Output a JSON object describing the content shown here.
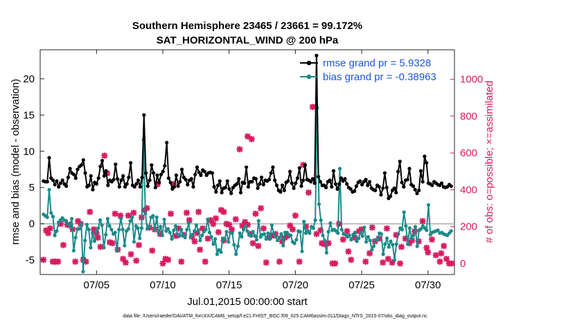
{
  "chart_data": {
    "type": "line",
    "title": "Southern Hemisphere 23465 / 23661 = 99.172%",
    "subtitle": "SAT_HORIZONTAL_WIND @ 200 hPa",
    "xlabel": "Jul.01,2015 00:00:00 start",
    "ylabel_left": "rmse and bias (model - observation)",
    "ylabel_right": "# of obs: o=possible; ×=assimilated",
    "footnote": "data file: /Users/raeder/DAI/ATM_forcXX/CAM6_setup/f.e21.FHIST_BGC.f09_025.CAM6assim.011/Diags_NTrS_2015-07/obs_diag_output.nc",
    "xlim": [
      0.75,
      32.0
    ],
    "ylim_left": [
      -7,
      24
    ],
    "ylim_right": [
      -60,
      1160
    ],
    "x_ticks": [
      5,
      10,
      15,
      20,
      25,
      30
    ],
    "x_tick_labels": [
      "07/05",
      "07/10",
      "07/15",
      "07/20",
      "07/25",
      "07/30"
    ],
    "y_ticks_left": [
      -5,
      0,
      5,
      10,
      15,
      20
    ],
    "y_ticks_right": [
      0,
      200,
      400,
      600,
      800,
      1000
    ],
    "zero_line": 0,
    "colors": {
      "rmse": "#000000",
      "bias": "#1a8a8a",
      "obs": "#d81b60",
      "legend_text": "#1a55e0",
      "zero_line": "#bbbbbb"
    },
    "series": [
      {
        "name": "rmse grand pr = 5.9328",
        "axis": "left",
        "color": "#000000",
        "marker": "dot",
        "values": [
          5.9,
          5.8,
          5.8,
          9.1,
          6.3,
          6.0,
          5.4,
          5.9,
          5.1,
          5.6,
          6.0,
          5.5,
          5.2,
          6.4,
          7.6,
          7.0,
          6.8,
          6.3,
          7.5,
          7.9,
          8.1,
          8.8,
          7.0,
          5.1,
          5.3,
          6.6,
          4.7,
          5.7,
          5.5,
          6.3,
          7.9,
          8.7,
          6.6,
          7.3,
          5.3,
          6.0,
          5.8,
          6.1,
          8.2,
          6.2,
          5.1,
          6.0,
          6.6,
          5.1,
          5.5,
          6.4,
          8.4,
          5.3,
          5.1,
          5.5,
          6.0,
          5.1,
          6.4,
          15.0,
          7.0,
          5.2,
          6.0,
          8.1,
          7.0,
          5.0,
          6.7,
          5.7,
          6.8,
          7.2,
          8.0,
          11.2,
          6.3,
          5.7,
          4.8,
          5.1,
          6.7,
          5.2,
          5.8,
          7.5,
          6.4,
          6.1,
          5.4,
          6.0,
          6.2,
          5.1,
          6.8,
          7.8,
          7.1,
          6.7,
          7.4,
          7.2,
          6.7,
          7.0,
          7.1,
          7.0,
          5.1,
          4.4,
          5.3,
          5.9,
          4.3,
          4.9,
          5.0,
          5.9,
          4.8,
          4.2,
          5.0,
          5.3,
          5.5,
          6.2,
          4.3,
          5.7,
          5.6,
          7.8,
          5.1,
          5.8,
          5.8,
          6.3,
          6.2,
          4.9,
          5.5,
          6.4,
          5.4,
          6.0,
          5.9,
          6.1,
          7.0,
          7.8,
          6.0,
          5.3,
          4.6,
          4.4,
          5.3,
          4.6,
          5.7,
          5.9,
          7.2,
          5.6,
          4.9,
          5.6,
          6.3,
          7.7,
          5.2,
          6.0,
          8.1,
          6.1,
          6.0,
          5.8,
          6.2,
          5.6,
          23.2,
          6.5,
          5.8,
          5.3,
          5.3,
          5.0,
          5.8,
          6.0,
          5.1,
          7.3,
          5.5,
          4.8,
          5.5,
          6.3,
          5.9,
          6.2,
          5.5,
          5.0,
          4.8,
          4.4,
          4.5,
          5.2,
          5.7,
          5.9,
          5.4,
          5.8,
          6.1,
          5.3,
          5.8,
          4.9,
          4.7,
          4.6,
          5.3,
          5.1,
          4.0,
          4.9,
          7.0,
          5.0,
          3.5,
          3.8,
          4.6,
          4.9,
          4.3,
          7.2,
          8.6,
          5.7,
          5.1,
          6.0,
          6.1,
          7.6,
          5.4,
          5.2,
          4.7,
          4.2,
          4.6,
          7.3,
          5.8,
          9.3,
          8.4,
          5.6,
          5.5,
          5.3,
          5.8,
          5.6,
          5.4,
          5.3,
          5.6,
          5.1,
          5.0,
          5.1,
          5.4,
          5.2
        ]
      },
      {
        "name": "bias grand pr = -0.38963",
        "axis": "left",
        "color": "#1a8a8a",
        "marker": "dot",
        "values": [
          1.3,
          1.1,
          0.9,
          4.7,
          1.5,
          1.0,
          -1.6,
          -1.0,
          0.2,
          0.5,
          0.8,
          0.5,
          0.4,
          0.0,
          -0.4,
          0.7,
          -3.7,
          -1.9,
          -0.7,
          -0.7,
          0.0,
          -6.6,
          -2.3,
          -0.1,
          -0.8,
          -3.3,
          -1.3,
          -2.4,
          -1.0,
          -0.6,
          0.5,
          -0.2,
          -3.3,
          -1.5,
          0.7,
          -0.3,
          -0.8,
          -1.4,
          -1.2,
          -3.7,
          -0.8,
          0.7,
          -0.8,
          -3.0,
          -1.0,
          -0.7,
          0.4,
          0.9,
          -2.5,
          -0.3,
          -0.6,
          -2.0,
          -0.6,
          11.6,
          1.4,
          -0.7,
          -0.4,
          0.9,
          1.1,
          -0.8,
          0.9,
          -1.3,
          -0.4,
          -1.6,
          0.6,
          -1.0,
          -0.7,
          -1.2,
          -2.1,
          -0.9,
          -0.3,
          -1.4,
          -1.7,
          -0.8,
          -1.6,
          -1.9,
          -0.8,
          0.1,
          -1.8,
          -1.5,
          -1.0,
          -0.2,
          -0.9,
          -2.3,
          -1.6,
          -1.1,
          -0.8,
          0.6,
          -1.2,
          -1.8,
          -2.8,
          -2.1,
          -4.2,
          -3.6,
          -3.9,
          -2.0,
          -2.1,
          -1.1,
          -2.5,
          -1.2,
          -1.3,
          -2.9,
          -4.2,
          -3.1,
          -1.3,
          -1.8,
          -0.8,
          -0.3,
          -1.0,
          -1.5,
          -1.7,
          -1.1,
          -1.7,
          -2.2,
          0.4,
          -1.8,
          -1.5,
          -1.4,
          -2.1,
          -1.3,
          -2.1,
          -0.2,
          -1.3,
          -1.8,
          -2.3,
          -1.9,
          -1.4,
          -3.0,
          -1.2,
          -1.2,
          -1.5,
          -1.6,
          -2.5,
          -2.7,
          -2.2,
          -1.0,
          -1.1,
          -3.8,
          0.3,
          -1.3,
          -1.0,
          -1.3,
          -0.4,
          -0.6,
          0.5,
          16.0,
          2.7,
          0.5,
          -1.6,
          -2.3,
          -4.0,
          -1.1,
          0.1,
          -0.9,
          -0.8,
          -1.0,
          -1.3,
          7.6,
          -0.8,
          -1.4,
          -1.5,
          -1.8,
          -1.6,
          -2.2,
          -1.5,
          -1.2,
          -2.4,
          -2.0,
          -1.2,
          -1.7,
          -0.5,
          -2.5,
          -1.8,
          -2.3,
          -3.6,
          -3.1,
          -2.2,
          -2.1,
          -1.3,
          -1.4,
          -4.2,
          -2.8,
          -2.0,
          -3.2,
          -2.4,
          -2.9,
          -5.0,
          -2.8,
          -1.4,
          -0.6,
          -0.8,
          1.6,
          -0.3,
          -2.8,
          -0.6,
          -2.0,
          -1.6,
          -0.4,
          -3.1,
          -0.9,
          -0.7,
          -0.3,
          -0.6,
          -0.9,
          2.6,
          -1.5,
          -1.2,
          -1.1,
          -1.0,
          -0.9,
          -1.3,
          -1.2,
          -1.4,
          -1.5,
          -1.6,
          -1.3,
          -1.0
        ]
      },
      {
        "name": "obs_assimilated",
        "axis": "right",
        "color": "#d81b60",
        "marker": "x",
        "points": [
          [
            1.0,
            20
          ],
          [
            1.2,
            180
          ],
          [
            1.35,
            165
          ],
          [
            1.5,
            190
          ],
          [
            1.7,
            10
          ],
          [
            1.9,
            10
          ],
          [
            2.1,
            10
          ],
          [
            2.3,
            215
          ],
          [
            2.5,
            100
          ],
          [
            2.8,
            210
          ],
          [
            3.0,
            210
          ],
          [
            3.2,
            185
          ],
          [
            3.4,
            10
          ],
          [
            3.6,
            230
          ],
          [
            3.8,
            215
          ],
          [
            4.0,
            20
          ],
          [
            4.2,
            10
          ],
          [
            4.5,
            280
          ],
          [
            4.8,
            185
          ],
          [
            5.0,
            165
          ],
          [
            5.1,
            140
          ],
          [
            5.3,
            90
          ],
          [
            5.6,
            585
          ],
          [
            5.8,
            490
          ],
          [
            6.0,
            115
          ],
          [
            6.2,
            110
          ],
          [
            6.4,
            270
          ],
          [
            6.6,
            75
          ],
          [
            6.8,
            260
          ],
          [
            7.0,
            25
          ],
          [
            7.2,
            5
          ],
          [
            7.4,
            260
          ],
          [
            7.6,
            50
          ],
          [
            7.8,
            275
          ],
          [
            8.0,
            15
          ],
          [
            8.2,
            100
          ],
          [
            8.4,
            250
          ],
          [
            8.6,
            290
          ],
          [
            8.8,
            300
          ],
          [
            9.0,
            195
          ],
          [
            9.2,
            70
          ],
          [
            9.4,
            185
          ],
          [
            9.6,
            430
          ],
          [
            9.8,
            160
          ],
          [
            10.0,
            0
          ],
          [
            10.2,
            25
          ],
          [
            10.4,
            20
          ],
          [
            10.6,
            270
          ],
          [
            10.8,
            430
          ],
          [
            11.0,
            150
          ],
          [
            11.2,
            190
          ],
          [
            11.4,
            10
          ],
          [
            11.6,
            155
          ],
          [
            11.8,
            275
          ],
          [
            12.0,
            235
          ],
          [
            12.2,
            145
          ],
          [
            12.4,
            120
          ],
          [
            12.6,
            165
          ],
          [
            12.8,
            75
          ],
          [
            13.0,
            190
          ],
          [
            13.2,
            10
          ],
          [
            13.4,
            135
          ],
          [
            13.6,
            235
          ],
          [
            13.8,
            215
          ],
          [
            14.0,
            245
          ],
          [
            14.2,
            170
          ],
          [
            14.4,
            290
          ],
          [
            14.6,
            125
          ],
          [
            14.8,
            215
          ],
          [
            15.0,
            210
          ],
          [
            15.2,
            185
          ],
          [
            15.5,
            240
          ],
          [
            15.8,
            620
          ],
          [
            16.0,
            205
          ],
          [
            16.2,
            225
          ],
          [
            16.4,
            210
          ],
          [
            16.6,
            160
          ],
          [
            16.8,
            110
          ],
          [
            17.0,
            270
          ],
          [
            17.2,
            95
          ],
          [
            17.4,
            300
          ],
          [
            17.6,
            190
          ],
          [
            17.8,
            5
          ],
          [
            18.0,
            140
          ],
          [
            18.2,
            150
          ],
          [
            18.5,
            160
          ],
          [
            18.8,
            10
          ],
          [
            19.0,
            120
          ],
          [
            19.2,
            140
          ],
          [
            19.4,
            150
          ],
          [
            19.6,
            205
          ],
          [
            19.8,
            185
          ],
          [
            20.0,
            260
          ],
          [
            20.3,
            10
          ],
          [
            20.6,
            535
          ],
          [
            20.8,
            200
          ],
          [
            21.0,
            385
          ],
          [
            21.3,
            850
          ],
          [
            21.6,
            160
          ],
          [
            21.9,
            180
          ],
          [
            22.0,
            110
          ],
          [
            22.2,
            105
          ],
          [
            22.5,
            110
          ],
          [
            22.8,
            0
          ],
          [
            23.0,
            0
          ],
          [
            23.3,
            215
          ],
          [
            23.6,
            130
          ],
          [
            23.9,
            175
          ],
          [
            24.0,
            65
          ],
          [
            24.2,
            20
          ],
          [
            24.5,
            140
          ],
          [
            24.8,
            175
          ],
          [
            25.0,
            185
          ],
          [
            25.3,
            10
          ],
          [
            25.6,
            55
          ],
          [
            25.8,
            195
          ],
          [
            26.0,
            120
          ],
          [
            26.3,
            135
          ],
          [
            26.6,
            5
          ],
          [
            26.9,
            190
          ],
          [
            27.0,
            25
          ],
          [
            27.3,
            5
          ],
          [
            27.6,
            155
          ],
          [
            27.9,
            0
          ],
          [
            28.0,
            90
          ],
          [
            28.3,
            135
          ],
          [
            28.6,
            110
          ],
          [
            28.8,
            125
          ],
          [
            29.0,
            175
          ],
          [
            29.3,
            120
          ],
          [
            29.6,
            230
          ],
          [
            29.9,
            85
          ],
          [
            30.0,
            60
          ],
          [
            30.3,
            130
          ],
          [
            30.6,
            45
          ],
          [
            30.9,
            10
          ],
          [
            31.0,
            55
          ],
          [
            31.2,
            95
          ],
          [
            31.4,
            25
          ],
          [
            31.6,
            0
          ],
          [
            31.8,
            0
          ],
          [
            16.4,
            690
          ],
          [
            16.7,
            675
          ],
          [
            14.6,
            280
          ],
          [
            12.7,
            280
          ]
        ]
      }
    ],
    "legend": {
      "position": "top-right",
      "entries": [
        "rmse grand pr = 5.9328",
        "bias grand pr = -0.38963"
      ]
    }
  }
}
